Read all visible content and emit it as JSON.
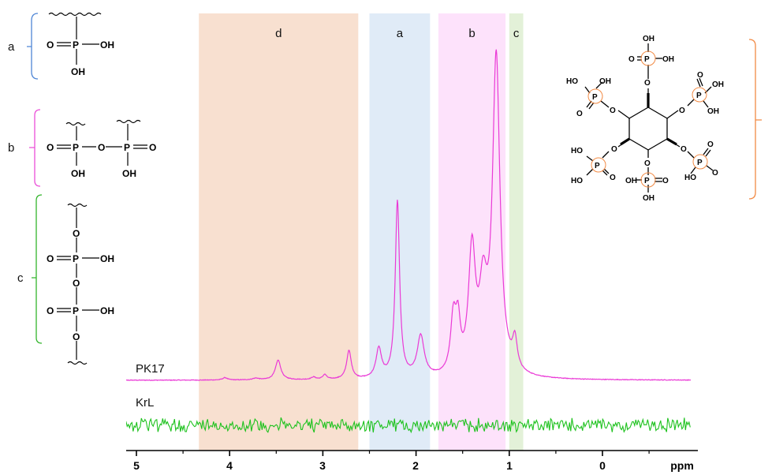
{
  "chart_data": {
    "type": "line",
    "xlabel": "ppm",
    "x_reversed": true,
    "xlim": [
      5.15,
      -0.95
    ],
    "xticks": [
      5,
      4,
      3,
      2,
      1,
      0
    ],
    "xtick_labels": [
      "5",
      "4",
      "3",
      "2",
      "1",
      "0",
      "ppm"
    ],
    "regions": [
      {
        "label": "d",
        "from": 4.33,
        "to": 2.62,
        "color": "#f8e0d0"
      },
      {
        "label": "a",
        "from": 2.5,
        "to": 1.85,
        "color": "#e0ebf7"
      },
      {
        "label": "b",
        "from": 1.76,
        "to": 1.04,
        "color": "#fde2fb"
      },
      {
        "label": "c",
        "from": 1.0,
        "to": 0.85,
        "color": "#e3f1d8"
      }
    ],
    "series": [
      {
        "name": "PK17",
        "color": "#ea3ad6",
        "baseline": 0,
        "peaks": [
          {
            "ppm": 4.05,
            "height": 3,
            "width": 0.03
          },
          {
            "ppm": 3.72,
            "height": 2,
            "width": 0.04
          },
          {
            "ppm": 3.48,
            "height": 25,
            "width": 0.035
          },
          {
            "ppm": 3.1,
            "height": 3,
            "width": 0.03
          },
          {
            "ppm": 2.98,
            "height": 6,
            "width": 0.025
          },
          {
            "ppm": 2.72,
            "height": 36,
            "width": 0.03
          },
          {
            "ppm": 2.4,
            "height": 37,
            "width": 0.035
          },
          {
            "ppm": 2.2,
            "height": 224,
            "width": 0.028
          },
          {
            "ppm": 1.95,
            "height": 52,
            "width": 0.045
          },
          {
            "ppm": 1.6,
            "height": 68,
            "width": 0.035
          },
          {
            "ppm": 1.55,
            "height": 56,
            "width": 0.03
          },
          {
            "ppm": 1.4,
            "height": 153,
            "width": 0.045
          },
          {
            "ppm": 1.28,
            "height": 95,
            "width": 0.05
          },
          {
            "ppm": 1.14,
            "height": 402,
            "width": 0.048
          },
          {
            "ppm": 0.94,
            "height": 37,
            "width": 0.03
          }
        ]
      },
      {
        "name": "KrL",
        "color": "#1ec21e",
        "baseline": 0,
        "noise": true
      }
    ],
    "structures": [
      {
        "label": "a",
        "bracket_color": "#4f86d6",
        "atoms": [
          "O",
          "P",
          "OH",
          "OH"
        ]
      },
      {
        "label": "b",
        "bracket_color": "#ea4fd8",
        "atoms": [
          "O",
          "P",
          "O",
          "P",
          "O",
          "OH",
          "OH"
        ]
      },
      {
        "label": "c",
        "bracket_color": "#33b52c",
        "atoms": [
          "O",
          "O",
          "P",
          "OH",
          "O",
          "O",
          "P",
          "OH",
          "O"
        ]
      },
      {
        "label": "d",
        "bracket_color": "#f28a44",
        "atoms": [
          "OH",
          "O",
          "P",
          "OH",
          "HO",
          "OH",
          "P",
          "O",
          "O",
          "O",
          "O",
          "P",
          "OH",
          "O",
          "OH",
          "O",
          "O",
          "HO",
          "O",
          "P",
          "O",
          "O",
          "P",
          "HO",
          "O",
          "HO",
          "P",
          "O",
          "OH",
          "OH",
          "O",
          "P",
          "O",
          "OH",
          "HO"
        ]
      }
    ]
  }
}
